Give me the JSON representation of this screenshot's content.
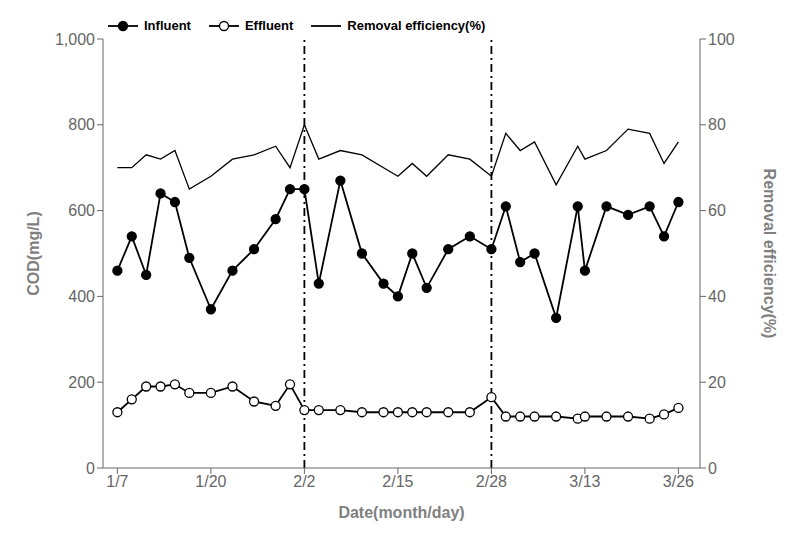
{
  "chart_data": {
    "type": "line",
    "x": [
      0,
      2,
      4,
      6,
      8,
      10,
      13,
      16,
      19,
      22,
      24,
      26,
      28,
      31,
      34,
      37,
      39,
      41,
      43,
      46,
      49,
      52,
      54,
      56,
      58,
      61,
      64,
      65,
      68,
      71,
      74,
      76,
      78
    ],
    "series": [
      {
        "name": "Influent",
        "color": "#000000",
        "marker": "filled_circle",
        "values": [
          460,
          540,
          450,
          640,
          620,
          490,
          370,
          460,
          510,
          580,
          650,
          650,
          430,
          670,
          500,
          430,
          400,
          500,
          420,
          510,
          540,
          510,
          610,
          480,
          500,
          350,
          610,
          460,
          610,
          590,
          610,
          540,
          620
        ]
      },
      {
        "name": "Effluent",
        "color": "#000000",
        "marker": "open_circle",
        "values": [
          130,
          160,
          190,
          190,
          195,
          175,
          175,
          190,
          155,
          145,
          195,
          135,
          135,
          135,
          130,
          130,
          130,
          130,
          130,
          130,
          130,
          165,
          120,
          120,
          120,
          120,
          115,
          120,
          120,
          120,
          115,
          125,
          140
        ]
      },
      {
        "name": "Removal efficiency(%)",
        "color": "#000000",
        "marker": "none",
        "axis": "y2",
        "values": [
          70,
          70,
          73,
          72,
          74,
          65,
          68,
          72,
          73,
          75,
          70,
          80,
          72,
          74,
          73,
          70,
          68,
          71,
          68,
          73,
          72,
          68,
          78,
          74,
          76,
          66,
          75,
          72,
          74,
          79,
          78,
          71,
          76
        ]
      }
    ],
    "vlines": [
      26,
      52
    ],
    "xlabel": "Date(month/day)",
    "ylabel": "COD(mg/L)",
    "y2label": "Removal efficiency(%)",
    "xlim": [
      -2,
      81
    ],
    "xticks": [
      {
        "value": 0,
        "label": "1/7"
      },
      {
        "value": 13,
        "label": "1/20"
      },
      {
        "value": 26,
        "label": "2/2"
      },
      {
        "value": 39,
        "label": "2/15"
      },
      {
        "value": 52,
        "label": "2/28"
      },
      {
        "value": 65,
        "label": "3/13"
      },
      {
        "value": 78,
        "label": "3/26"
      }
    ],
    "ylim": [
      0,
      1000
    ],
    "yticks": [
      0,
      200,
      400,
      600,
      800,
      {
        "value": 1000,
        "label": "1,000"
      }
    ],
    "y2lim": [
      0,
      100
    ],
    "y2ticks": [
      0,
      20,
      40,
      60,
      80,
      100
    ],
    "grid": false,
    "legend": "upper left"
  }
}
